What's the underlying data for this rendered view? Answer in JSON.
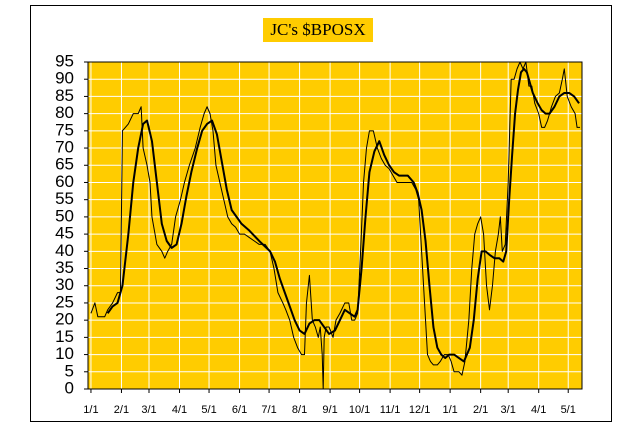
{
  "chart_data": {
    "type": "line",
    "title": "JC's $BPOSX",
    "xlim": [
      -3,
      499
    ],
    "ylim": [
      0,
      95
    ],
    "xticks": [
      {
        "value": 0,
        "label": "1/1"
      },
      {
        "value": 31,
        "label": "2/1"
      },
      {
        "value": 59,
        "label": "3/1"
      },
      {
        "value": 90,
        "label": "4/1"
      },
      {
        "value": 120,
        "label": "5/1"
      },
      {
        "value": 151,
        "label": "6/1"
      },
      {
        "value": 181,
        "label": "7/1"
      },
      {
        "value": 212,
        "label": "8/1"
      },
      {
        "value": 243,
        "label": "9/1"
      },
      {
        "value": 273,
        "label": "10/1"
      },
      {
        "value": 304,
        "label": "11/1"
      },
      {
        "value": 334,
        "label": "12/1"
      },
      {
        "value": 365,
        "label": "1/1"
      },
      {
        "value": 396,
        "label": "2/1"
      },
      {
        "value": 424,
        "label": "3/1"
      },
      {
        "value": 455,
        "label": "4/1"
      },
      {
        "value": 485,
        "label": "5/1"
      }
    ],
    "yticks": [
      0,
      5,
      10,
      15,
      20,
      25,
      30,
      35,
      40,
      45,
      50,
      55,
      60,
      65,
      70,
      75,
      80,
      85,
      90,
      95
    ],
    "grid": true,
    "grid_color": "#ffffff",
    "plot_color": "#ffcc00",
    "series": [
      {
        "color": "#000000",
        "line_width": 1,
        "x": [
          0,
          4,
          7,
          14,
          17,
          22,
          27,
          30,
          32,
          38,
          43,
          48,
          51,
          53,
          57,
          60,
          62,
          67,
          72,
          75,
          78,
          82,
          86,
          91,
          95,
          100,
          106,
          111,
          115,
          118,
          121,
          124,
          127,
          131,
          135,
          139,
          143,
          147,
          151,
          156,
          161,
          166,
          171,
          177,
          182,
          186,
          190,
          195,
          198,
          202,
          206,
          210,
          214,
          217,
          219,
          222,
          225,
          228,
          231,
          233,
          235,
          236,
          237,
          239,
          242,
          246,
          249,
          253,
          258,
          262,
          265,
          268,
          271,
          274,
          277,
          280,
          283,
          287,
          291,
          295,
          299,
          303,
          307,
          311,
          319,
          326,
          330,
          333,
          336,
          339,
          342,
          345,
          348,
          352,
          355,
          359,
          363,
          366,
          369,
          374,
          377,
          380,
          384,
          387,
          390,
          393,
          396,
          399,
          402,
          405,
          408,
          411,
          414,
          416,
          418,
          421,
          424,
          427,
          430,
          433,
          436,
          439,
          442,
          445,
          448,
          451,
          455,
          458,
          461,
          464,
          468,
          472,
          476,
          479,
          481,
          484,
          488,
          492,
          494,
          497
        ],
        "values": [
          22,
          25,
          21,
          21,
          23,
          25,
          28,
          28,
          75,
          77,
          80,
          80,
          82,
          70,
          65,
          60,
          50,
          42,
          40,
          38,
          40,
          42,
          50,
          55,
          60,
          65,
          70,
          76,
          80,
          82,
          80,
          75,
          65,
          60,
          55,
          50,
          48,
          47,
          45,
          45,
          44,
          43,
          42,
          42,
          40,
          35,
          28,
          25,
          23,
          20,
          15,
          12,
          10,
          10,
          25,
          33,
          20,
          18,
          15,
          18,
          10,
          0,
          15,
          18,
          18,
          15,
          20,
          22,
          25,
          25,
          20,
          20,
          22,
          40,
          60,
          70,
          75,
          75,
          70,
          67,
          65,
          64,
          62,
          60,
          60,
          60,
          58,
          55,
          40,
          25,
          10,
          8,
          7,
          7,
          8,
          10,
          10,
          8,
          5,
          5,
          4,
          8,
          20,
          35,
          45,
          48,
          50,
          45,
          30,
          23,
          30,
          40,
          45,
          50,
          40,
          42,
          60,
          90,
          90,
          93,
          95,
          93,
          95,
          88,
          88,
          83,
          80,
          76,
          76,
          78,
          82,
          85,
          86,
          90,
          93,
          85,
          82,
          80,
          76,
          76
        ]
      },
      {
        "color": "#000000",
        "line_width": 2,
        "x": [
          17,
          22,
          27,
          32,
          38,
          43,
          48,
          53,
          57,
          62,
          67,
          72,
          77,
          82,
          87,
          92,
          97,
          102,
          108,
          113,
          118,
          123,
          128,
          133,
          138,
          143,
          148,
          153,
          161,
          171,
          182,
          187,
          192,
          197,
          202,
          207,
          212,
          217,
          222,
          227,
          232,
          237,
          242,
          248,
          253,
          258,
          263,
          268,
          271,
          275,
          279,
          283,
          288,
          293,
          298,
          303,
          308,
          313,
          322,
          328,
          332,
          336,
          340,
          344,
          348,
          352,
          356,
          360,
          364,
          369,
          374,
          379,
          385,
          389,
          393,
          397,
          401,
          405,
          410,
          415,
          419,
          422,
          425,
          428,
          431,
          434,
          437,
          440,
          443,
          446,
          449,
          454,
          458,
          462,
          466,
          471,
          476,
          481,
          486,
          491,
          496
        ],
        "values": [
          22,
          24,
          25,
          30,
          45,
          60,
          70,
          77,
          78,
          72,
          60,
          48,
          43,
          41,
          42,
          48,
          56,
          63,
          70,
          75,
          77,
          78,
          74,
          66,
          58,
          52,
          50,
          48,
          46,
          43,
          40,
          37,
          32,
          28,
          24,
          20,
          17,
          16,
          19,
          20,
          20,
          18,
          16,
          17,
          20,
          23,
          22,
          21,
          23,
          35,
          50,
          63,
          69,
          72,
          68,
          65,
          63,
          62,
          62,
          60,
          57,
          52,
          43,
          30,
          18,
          12,
          10,
          9,
          10,
          10,
          9,
          8,
          12,
          20,
          32,
          40,
          40,
          39,
          38,
          38,
          37,
          40,
          55,
          68,
          80,
          87,
          92,
          93,
          92,
          89,
          86,
          83,
          81,
          80,
          80,
          82,
          85,
          86,
          86,
          85,
          83
        ]
      }
    ]
  }
}
